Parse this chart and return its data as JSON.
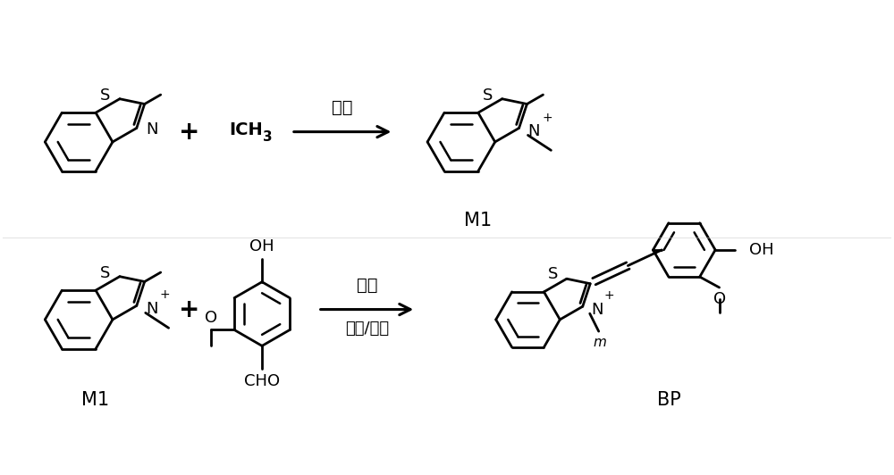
{
  "bg_color": "#ffffff",
  "line_color": "#000000",
  "line_width": 2.0,
  "font_size_label": 15,
  "font_size_atom": 13,
  "font_size_reagent": 14,
  "reaction1_reagent_top": "丙酮",
  "reaction2_reagent_top": "哌啶",
  "reaction2_reagent_bot": "甲醇/乙腈",
  "label_M1_top": "M1",
  "label_M1_bot": "M1",
  "label_BP": "BP",
  "plus_sign": "+",
  "fig_width": 10.0,
  "fig_height": 5.32
}
